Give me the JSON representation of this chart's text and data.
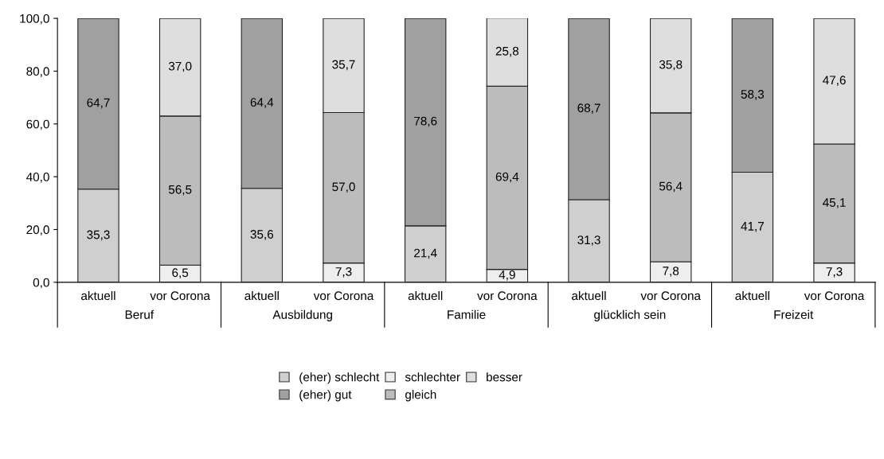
{
  "chart_data": {
    "type": "bar",
    "stacked": true,
    "legend": "bottom",
    "grid": false,
    "categories": [
      "aktuell",
      "vor Corona",
      "aktuell",
      "vor Corona",
      "aktuell",
      "vor Corona",
      "aktuell",
      "vor Corona",
      "aktuell",
      "vor Corona"
    ],
    "annotations": [
      "Beruf",
      "Ausbildung",
      "Familie",
      "glücklich sein",
      "Freizeit"
    ],
    "ylim": [
      0,
      100
    ],
    "yticks": [
      {
        "value": 0,
        "label": "0,0"
      },
      {
        "value": 20,
        "label": "20,0"
      },
      {
        "value": 40,
        "label": "40,0"
      },
      {
        "value": 60,
        "label": "60,0"
      },
      {
        "value": 80,
        "label": "80,0"
      },
      {
        "value": 100,
        "label": "100,0"
      }
    ],
    "series": [
      {
        "name": "(eher) schlecht",
        "color": "#cfcfcf",
        "values": [
          35.3,
          null,
          35.6,
          null,
          21.4,
          null,
          31.3,
          null,
          41.7,
          null
        ],
        "value_labels": [
          "35,3",
          null,
          "35,6",
          null,
          "21,4",
          null,
          "31,3",
          null,
          "41,7",
          null
        ]
      },
      {
        "name": "(eher) gut",
        "color": "#a0a0a0",
        "values": [
          64.7,
          null,
          64.4,
          null,
          78.6,
          null,
          68.7,
          null,
          58.3,
          null
        ],
        "value_labels": [
          "64,7",
          null,
          "64,4",
          null,
          "78,6",
          null,
          "68,7",
          null,
          "58,3",
          null
        ]
      },
      {
        "name": "schlechter",
        "color": "#eeeeee",
        "values": [
          null,
          6.5,
          null,
          7.3,
          null,
          4.9,
          null,
          7.8,
          null,
          7.3
        ],
        "value_labels": [
          null,
          "6,5",
          null,
          "7,3",
          null,
          "4,9",
          null,
          "7,8",
          null,
          "7,3"
        ]
      },
      {
        "name": "gleich",
        "color": "#bcbcbc",
        "values": [
          null,
          56.5,
          null,
          57.0,
          null,
          69.4,
          null,
          56.4,
          null,
          45.1
        ],
        "value_labels": [
          null,
          "56,5",
          null,
          "57,0",
          null,
          "69,4",
          null,
          "56,4",
          null,
          "45,1"
        ]
      },
      {
        "name": "besser",
        "color": "#dedede",
        "values": [
          null,
          37.0,
          null,
          35.7,
          null,
          25.8,
          null,
          35.8,
          null,
          47.6
        ],
        "value_labels": [
          null,
          "37,0",
          null,
          "35,7",
          null,
          "25,8",
          null,
          "35,8",
          null,
          "47,6"
        ]
      }
    ]
  }
}
